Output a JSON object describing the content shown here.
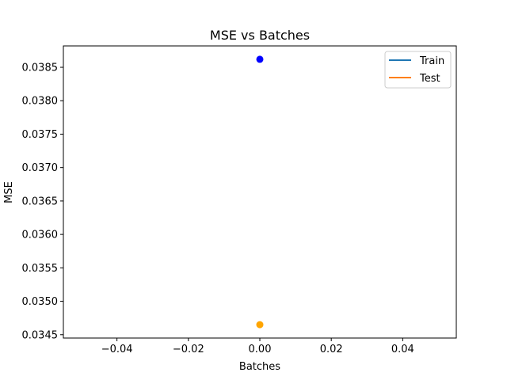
{
  "chart_data": {
    "type": "scatter",
    "title": "MSE vs Batches",
    "xlabel": "Batches",
    "ylabel": "MSE",
    "xlim": [
      -0.055,
      0.055
    ],
    "ylim": [
      0.03445,
      0.03882
    ],
    "xticks": [
      -0.04,
      -0.02,
      0.0,
      0.02,
      0.04
    ],
    "xtick_labels": [
      "−0.04",
      "−0.02",
      "0.00",
      "0.02",
      "0.04"
    ],
    "yticks": [
      0.0345,
      0.035,
      0.0355,
      0.036,
      0.0365,
      0.037,
      0.0375,
      0.038,
      0.0385
    ],
    "ytick_labels": [
      "0.0345",
      "0.0350",
      "0.0355",
      "0.0360",
      "0.0365",
      "0.0370",
      "0.0375",
      "0.0380",
      "0.0385"
    ],
    "grid": false,
    "legend_position": "top-right",
    "legend": [
      {
        "name": "Train",
        "color": "#1f77b4"
      },
      {
        "name": "Test",
        "color": "#ff7f0e"
      }
    ],
    "points": [
      {
        "x": 0,
        "y": 0.03862,
        "color": "#0000ff"
      },
      {
        "x": 0,
        "y": 0.03465,
        "color": "#ffa500"
      }
    ]
  }
}
